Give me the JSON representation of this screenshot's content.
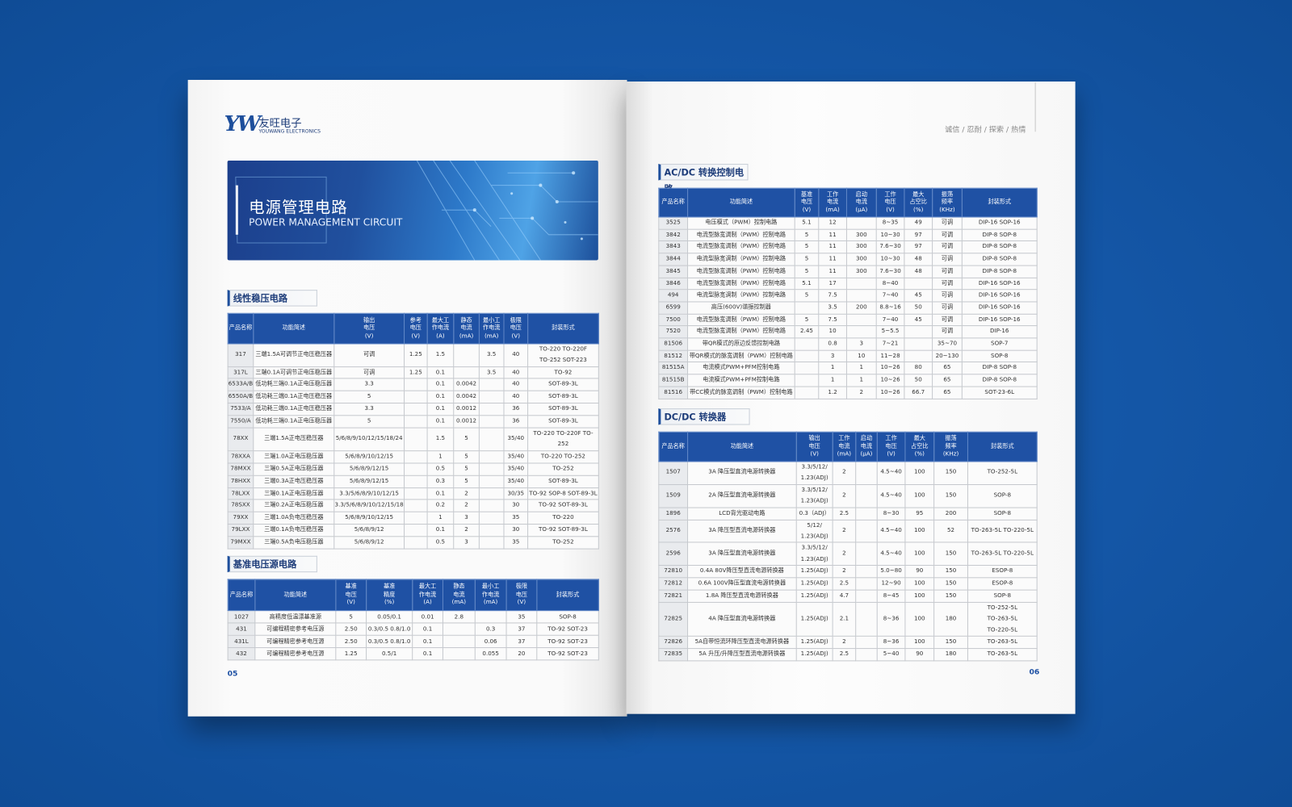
{
  "left_page": {
    "brand": {
      "logo": "YW",
      "name": "友旺电子",
      "sub": "YOUWANG ELECTRONICS"
    },
    "banner": {
      "title": "电源管理电路",
      "subtitle": "POWER MANAGEMENT CIRCUIT"
    },
    "linear": {
      "title": "线性稳压电路",
      "headers": [
        "产品名称",
        "功能简述",
        "输出\n电压\n(V)",
        "参考\n电压\n(V)",
        "最大工\n作电流\n(A)",
        "静态\n电流\n(mA)",
        "最小工\n作电流\n(mA)",
        "极限\n电压\n(V)",
        "封装形式"
      ],
      "rows": [
        [
          "317",
          "三端1.5A可调节正电压稳压器",
          "可调",
          "1.25",
          "1.5",
          null,
          "3.5",
          "40",
          "TO-220 TO-220F\nTO-252 SOT-223"
        ],
        [
          "317L",
          "三端0.1A可调节正电压稳压器",
          "可调",
          "1.25",
          "0.1",
          null,
          "3.5",
          "40",
          "TO-92"
        ],
        [
          "6533A/B",
          "低功耗三端0.1A正电压稳压器",
          "3.3",
          null,
          "0.1",
          "0.0042",
          null,
          "40",
          "SOT-89-3L"
        ],
        [
          "6550A/B",
          "低功耗三端0.1A正电压稳压器",
          "5",
          null,
          "0.1",
          "0.0042",
          null,
          "40",
          "SOT-89-3L"
        ],
        [
          "7533/A",
          "低功耗三端0.1A正电压稳压器",
          "3.3",
          null,
          "0.1",
          "0.0012",
          null,
          "36",
          "SOT-89-3L"
        ],
        [
          "7550/A",
          "低功耗三端0.1A正电压稳压器",
          "5",
          null,
          "0.1",
          "0.0012",
          null,
          "36",
          "SOT-89-3L"
        ],
        [
          "78XX",
          "三端1.5A正电压稳压器",
          "5/6/8/9/10/12/15/18/24",
          null,
          "1.5",
          "5",
          null,
          "35/40",
          "TO-220 TO-220F TO-252"
        ],
        [
          "78XXA",
          "三端1.0A正电压稳压器",
          "5/6/8/9/10/12/15",
          null,
          "1",
          "5",
          null,
          "35/40",
          "TO-220 TO-252"
        ],
        [
          "78MXX",
          "三端0.5A正电压稳压器",
          "5/6/8/9/12/15",
          null,
          "0.5",
          "5",
          null,
          "35/40",
          "TO-252"
        ],
        [
          "78HXX",
          "三端0.3A正电压稳压器",
          "5/6/8/9/12/15",
          null,
          "0.3",
          "5",
          null,
          "35/40",
          "SOT-89-3L"
        ],
        [
          "78LXX",
          "三端0.1A正电压稳压器",
          "3.3/5/6/8/9/10/12/15",
          null,
          "0.1",
          "2",
          null,
          "30/35",
          "TO-92 SOP-8 SOT-89-3L"
        ],
        [
          "78SXX",
          "三端0.2A正电压稳压器",
          "3.3/5/6/8/9/10/12/15/18",
          null,
          "0.2",
          "2",
          null,
          "30",
          "TO-92 SOT-89-3L"
        ],
        [
          "79XX",
          "三端1.0A负电压稳压器",
          "5/6/8/9/10/12/15",
          null,
          "1",
          "3",
          null,
          "35",
          "TO-220"
        ],
        [
          "79LXX",
          "三端0.1A负电压稳压器",
          "5/6/8/9/12",
          null,
          "0.1",
          "2",
          null,
          "30",
          "TO-92 SOT-89-3L"
        ],
        [
          "79MXX",
          "三端0.5A负电压稳压器",
          "5/6/8/9/12",
          null,
          "0.5",
          "3",
          null,
          "35",
          "TO-252"
        ]
      ]
    },
    "reference": {
      "title": "基准电压源电路",
      "headers": [
        "产品名称",
        "功能简述",
        "基准\n电压\n(V)",
        "基准\n精度\n(%)",
        "最大工\n作电流\n(A)",
        "静态\n电流\n(mA)",
        "最小工\n作电流\n(mA)",
        "极限\n电压\n(V)",
        "封装形式"
      ],
      "rows": [
        [
          "1027",
          "高精度低温漂基准源",
          "5",
          "0.05/0.1",
          "0.01",
          "2.8",
          null,
          "35",
          "SOP-8"
        ],
        [
          "431",
          "可编程精密参考电压源",
          "2.50",
          "0.3/0.5 0.8/1.0",
          "0.1",
          null,
          "0.3",
          "37",
          "TO-92 SOT-23"
        ],
        [
          "431L",
          "可编程精密参考电压源",
          "2.50",
          "0.3/0.5 0.8/1.0",
          "0.1",
          null,
          "0.06",
          "37",
          "TO-92 SOT-23"
        ],
        [
          "432",
          "可编程精密参考电压源",
          "1.25",
          "0.5/1",
          "0.1",
          null,
          "0.055",
          "20",
          "TO-92 SOT-23"
        ]
      ]
    },
    "page_number": "05"
  },
  "right_page": {
    "tagline": "诚信 / 忍耐 / 探索 / 热情",
    "acdc": {
      "title": "AC/DC 转换控制电路",
      "headers": [
        "产品名称",
        "功能简述",
        "基准\n电压\n(V)",
        "工作\n电流\n(mA)",
        "启动\n电流\n(μA)",
        "工作\n电压\n(V)",
        "最大\n占空比\n(%)",
        "振荡\n频率\n(KHz)",
        "封装形式"
      ],
      "rows": [
        [
          "3525",
          "电压模式（PWM）控制电路",
          "5.1",
          "12",
          null,
          "8~35",
          "49",
          "可调",
          "DIP-16 SOP-16"
        ],
        [
          "3842",
          "电流型脉宽调制（PWM）控制电路",
          "5",
          "11",
          "300",
          "10~30",
          "97",
          "可调",
          "DIP-8 SOP-8"
        ],
        [
          "3843",
          "电流型脉宽调制（PWM）控制电路",
          "5",
          "11",
          "300",
          "7.6~30",
          "97",
          "可调",
          "DIP-8 SOP-8"
        ],
        [
          "3844",
          "电流型脉宽调制（PWM）控制电路",
          "5",
          "11",
          "300",
          "10~30",
          "48",
          "可调",
          "DIP-8 SOP-8"
        ],
        [
          "3845",
          "电流型脉宽调制（PWM）控制电路",
          "5",
          "11",
          "300",
          "7.6~30",
          "48",
          "可调",
          "DIP-8 SOP-8"
        ],
        [
          "3846",
          "电流型脉宽调制（PWM）控制电路",
          "5.1",
          "17",
          null,
          "8~40",
          null,
          "可调",
          "DIP-16 SOP-16"
        ],
        [
          "494",
          "电流型脉宽调制（PWM）控制电路",
          "5",
          "7.5",
          null,
          "7~40",
          "45",
          "可调",
          "DIP-16 SOP-16"
        ],
        [
          "6599",
          "高压(600V)谐振控制器",
          null,
          "3.5",
          "200",
          "8.8~16",
          "50",
          "可调",
          "DIP-16 SOP-16"
        ],
        [
          "7500",
          "电流型脉宽调制（PWM）控制电路",
          "5",
          "7.5",
          null,
          "7~40",
          "45",
          "可调",
          "DIP-16 SOP-16"
        ],
        [
          "7520",
          "电流型脉宽调制（PWM）控制电路",
          "2.45",
          "10",
          null,
          "5~5.5",
          null,
          "可调",
          "DIP-16"
        ],
        [
          "81506",
          "带QR模式的原边反馈控制电路",
          null,
          "0.8",
          "3",
          "7~21",
          null,
          "35~70",
          "SOP-7"
        ],
        [
          "81512",
          "带QR模式的脉宽调制（PWM）控制电路",
          null,
          "3",
          "10",
          "11~28",
          null,
          "20~130",
          "SOP-8"
        ],
        [
          "81515A",
          "电流模式PWM+PFM控制电路",
          null,
          "1",
          "1",
          "10~26",
          "80",
          "65",
          "DIP-8 SOP-8"
        ],
        [
          "81515B",
          "电流模式PWM+PFM控制电路",
          null,
          "1",
          "1",
          "10~26",
          "50",
          "65",
          "DIP-8 SOP-8"
        ],
        [
          "81516",
          "带CC模式的脉宽调制（PWM）控制电路",
          null,
          "1.2",
          "2",
          "10~26",
          "66.7",
          "65",
          "SOT-23-6L"
        ]
      ]
    },
    "dcdc": {
      "title": "DC/DC 转换器",
      "headers": [
        "产品名称",
        "功能简述",
        "输出\n电压\n(V)",
        "工作\n电流\n(mA)",
        "启动\n电流\n(μA)",
        "工作\n电压\n(V)",
        "最大\n占空比\n(%)",
        "振荡\n频率\n(KHz)",
        "封装形式"
      ],
      "rows": [
        [
          "1507",
          "3A 降压型直流电源转换器",
          "3.3/5/12/\n1.23(ADJ)",
          "2",
          null,
          "4.5~40",
          "100",
          "150",
          "TO-252-5L"
        ],
        [
          "1509",
          "2A 降压型直流电源转换器",
          "3.3/5/12/\n1.23(ADJ)",
          "2",
          null,
          "4.5~40",
          "100",
          "150",
          "SOP-8"
        ],
        [
          "1896",
          "LCD背光驱动电路",
          "0.3（ADJ）",
          "2.5",
          null,
          "8~30",
          "95",
          "200",
          "SOP-8"
        ],
        [
          "2576",
          "3A 降压型直流电源转换器",
          "5/12/\n1.23(ADJ)",
          "2",
          null,
          "4.5~40",
          "100",
          "52",
          "TO-263-5L TO-220-5L"
        ],
        [
          "2596",
          "3A 降压型直流电源转换器",
          "3.3/5/12/\n1.23(ADJ)",
          "2",
          null,
          "4.5~40",
          "100",
          "150",
          "TO-263-5L TO-220-5L"
        ],
        [
          "72810",
          "0.4A 80V降压型直流电源转换器",
          "1.25(ADJ)",
          "2",
          null,
          "5.0~80",
          "90",
          "150",
          "ESOP-8"
        ],
        [
          "72812",
          "0.6A 100V降压型直流电源转换器",
          "1.25(ADJ)",
          "2.5",
          null,
          "12~90",
          "100",
          "150",
          "ESOP-8"
        ],
        [
          "72821",
          "1.8A 降压型直流电源转换器",
          "1.25(ADJ)",
          "4.7",
          null,
          "8~45",
          "100",
          "150",
          "SOP-8"
        ],
        [
          "72825",
          "4A 降压型直流电源转换器",
          "1.25(ADJ)",
          "2.1",
          null,
          "8~36",
          "100",
          "180",
          "TO-252-5L\nTO-263-5L\nTO-220-5L"
        ],
        [
          "72826",
          "5A自带恒流环降压型直流电源转换器",
          "1.25(ADJ)",
          "2",
          null,
          "8~36",
          "100",
          "150",
          "TO-263-5L"
        ],
        [
          "72835",
          "5A 升压/升降压型直流电源转换器",
          "1.25(ADJ)",
          "2.5",
          null,
          "5~40",
          "90",
          "180",
          "TO-263-5L"
        ]
      ]
    },
    "page_number": "06"
  }
}
